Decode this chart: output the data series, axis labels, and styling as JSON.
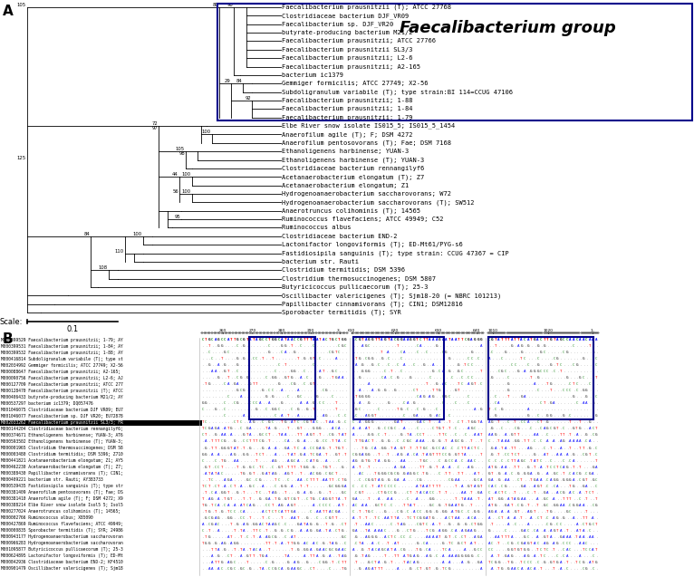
{
  "title_A": "A",
  "title_B": "B",
  "faecali_group_label": "Faecalibacterium group",
  "scale_label": "Scale:",
  "scale_value": "0.1",
  "tree_taxa": [
    "Faecalibacterium prausnitzii (T); ATCC 27768",
    "Clostridiaceae bacterium DJF_VR09",
    "Faecalibacterium sp. DJF_VR20",
    "butyrate-producing bacterium M21/2",
    "Faecalibacterium prausnitzii; ATCC 27766",
    "Faecalibacterium prausnitzii SL3/3",
    "Faecalibacterium prausnitzii; L2-6",
    "Faecalibacterium prausnitzii; A2-165",
    "bacterium ic1379",
    "Gemmiger formicilis; ATCC 27749; X2-56",
    "Subdoligranulum variabile (T); type strain:BI 114=CCUG 47106",
    "Faecalibacterium prausnitzii; 1-88",
    "Faecalibacterium prausnitzii; 1-84",
    "Faecalibacterium prausnitzii; 1-79",
    "Elbe River snow isolate IS015_5; IS015_5_1454",
    "Anaerofilum agile (T); F; DSM 4272",
    "Anaerofilum pentosovorans (T); Fae; DSM 7168",
    "Ethanoligenens harbinense; YUAN-3",
    "Ethanoligenens harbinense (T); YUAN-3",
    "Clostridiaceae bacterium rennangilyf6",
    "Acetanaerobacterium elongatum (T); Z7",
    "Acetanaerobacterium elongatum; Z1",
    "Hydrogenoanaerobacterium saccharovorans; W72",
    "Hydrogenoanaerobacterium saccharovorans (T); SW512",
    "Anaerotruncus colihominis (T); 14565",
    "Ruminococcus flavefaciens; ATCC 49949; C52",
    "Ruminococcus albus",
    "Clostridiaceae bacterium END-2",
    "Lactonifactor longoviformis (T); ED-Mt61/PYG-s6",
    "Fastidiosipila sanguinis (T); type strain: CCUG 47367 = CIP",
    "bacterium str. Rauti",
    "Clostridium termitidis; DSM 5396",
    "Clostridium thermosuccinogenes; DSM 5807",
    "Butyricicoccus pullicaecorum (T); 25-3",
    "Oscillibacter valericigenes (T); Sjm18-20 (= NBRC 101213)",
    "Papillibacter cinnamivorans (T); CIN1; DSM12816",
    "Sporobacter termitidis (T); SYR"
  ],
  "alignment_taxa_labels": [
    "M000399529 Faecalibacterium prausnitzii; 1-79; AY",
    "M000399531 Faecalibacterium prausnitzii; 1-84; AY",
    "M000399532 Faecalibacterium prausnitzii; 1-88; AY",
    "M000416814 Subdoligranulum variabile (T); type st",
    "M002034992 Gemmiger formicilis; ATCC 27749; X2-56",
    "M000088647 Faecalibacterium prausnitzii; A2-165;",
    "M000090756 Faecalibacterium prausnitzii; L2-6; AJ",
    "M000127709 Faecalibacterium prausnitzii; ATCC 277",
    "M000128470 Faecalibacterium prausnitzii (T); ATCC",
    "M000406433 butyrate-producing bacterium M21/2; AY",
    "M000537297 bacterium ic1379; DQ057476",
    "M001046075 Clostridiaceae bacterium DJF VR09; EU7",
    "M001046077 Faecalibacterium sp. DJF VR20; EU72878",
    "M002033262 Faecalibacterium prausnitzii SL3/3; FR",
    "M000144204 Clostridiaceae bacterium rennangilyf6;",
    "M000374671 Ethanoligenens harbinense; YUAN-3; AT6",
    "M000593502 Ethanoligenens harbinense (T); YUAN-3;",
    "M000001965 Clostridium thermosuccinogenes; DSM 58",
    "M000003480 Clostridium termitidis; DSM 5396; Z710",
    "M000441821 Acetanaerobacterium elongatum; Z1; AY5",
    "M000462230 Acetanaerobacterium elongatum (T); Z7;",
    "M000388430 Papillibacter cinnamivorans (T); CIN1;",
    "M000409221 bacterium str. Rauti; AY383733",
    "M000539435 Fastidiosipila sanguinis (T); type str",
    "M000381409 Anaerofilum pentosovorans (T); Fae; DS",
    "M000381410 Anaerofilum agile (T); F; DSM 4272; X9",
    "M000388214 Elbe River snow isolate Isol5 5; Isol5",
    "M000277024 Anaerotruncus colihominis (T); 14565;",
    "M000002766 Ruminococcus albus; X85090",
    "M000427869 Ruminococcus flavefaciens; ATCC 49949;",
    "M000000835 Sporobacter termitidis (T); SYR; 24986",
    "M000943177 Hydrogenoanaerobacterium saccharovoran",
    "M000966283 Hydrogenoanaerobacterium saccharovoran",
    "M001095877 Butyricicoccus pullicaecorum (T); 25-3",
    "M000624895 Lactonifactor longoviformis (T); ED-Mt",
    "M000842936 Clostridiaceae bacterium END-2; KF4510",
    "M000901479 Oscillibacter valericigenes (T); Sjm18"
  ],
  "align_highlighted_row": 13,
  "bg_color": "#ffffff",
  "box_color": "#00008B"
}
